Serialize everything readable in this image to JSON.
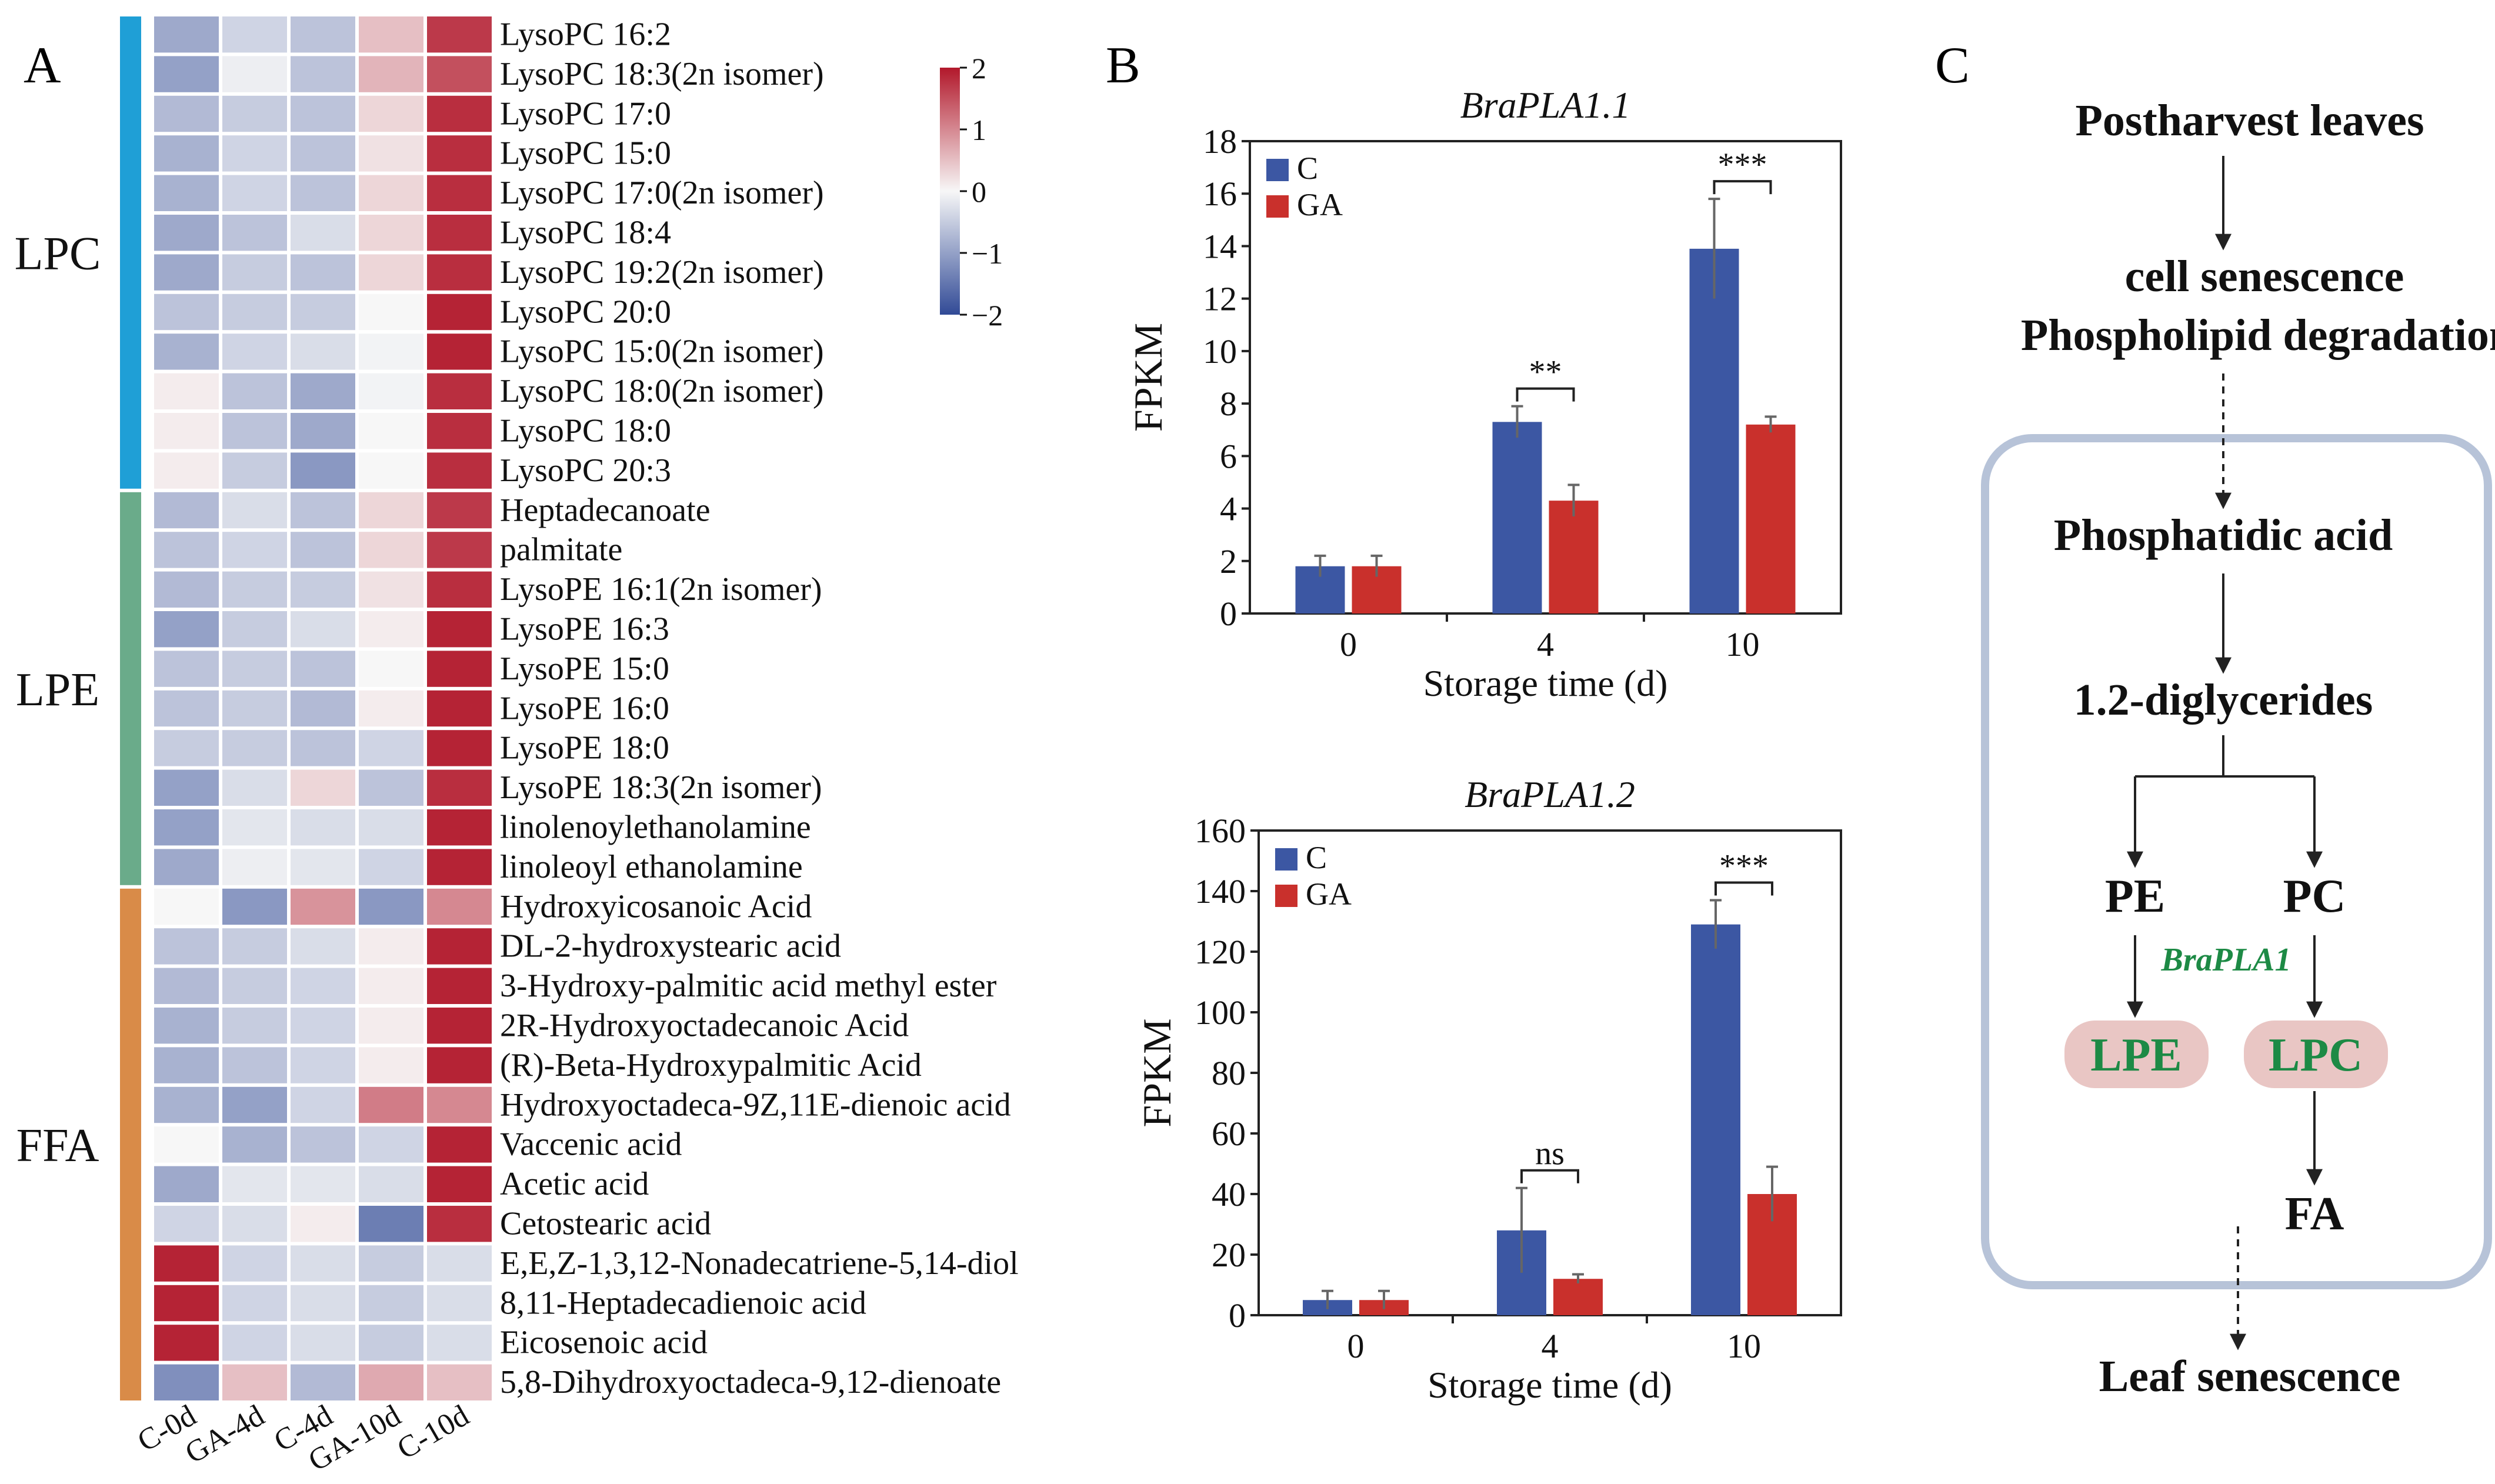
{
  "panel_labels": {
    "a": "A",
    "b": "B",
    "c": "C"
  },
  "colors": {
    "blue": "#3c57a3",
    "red": "#c9302c",
    "lpc_bar": "#1f9fd6",
    "lpe_bar": "#6aab8a",
    "ffa_bar": "#d98b48",
    "pathway_box": "#b7c3d8",
    "pill": "#e9c6c4",
    "green_text": "#1d8a45"
  },
  "heatmap": {
    "groups": [
      {
        "label": "LPC",
        "count": 12
      },
      {
        "label": "LPE",
        "count": 10
      },
      {
        "label": "FFA",
        "count": 13
      }
    ],
    "columns": [
      "C-0d",
      "GA-4d",
      "C-4d",
      "GA-10d",
      "C-10d"
    ],
    "rows": [
      "LysoPC  16:2",
      "LysoPC  18:3(2n  isomer)",
      "LysoPC  17:0",
      "LysoPC  15:0",
      "LysoPC  17:0(2n  isomer)",
      "LysoPC  18:4",
      "LysoPC  19:2(2n  isomer)",
      "LysoPC  20:0",
      "LysoPC  15:0(2n  isomer)",
      "LysoPC  18:0(2n  isomer)",
      "LysoPC  18:0",
      "LysoPC  20:3",
      "Heptadecanoate",
      "palmitate",
      "LysoPE  16:1(2n  isomer)",
      "LysoPE  16:3",
      "LysoPE  15:0",
      "LysoPE  16:0",
      "LysoPE  18:0",
      "LysoPE  18:3(2n  isomer)",
      "linolenoylethanolamine",
      "linoleoyl  ethanolamine",
      "Hydroxyicosanoic  Acid",
      "DL-2-hydroxystearic  acid",
      "3-Hydroxy-palmitic  acid  methyl  ester",
      "2R-Hydroxyoctadecanoic  Acid",
      "(R)-Beta-Hydroxypalmitic  Acid",
      "Hydroxyoctadeca-9Z,11E-dienoic  acid",
      "Vaccenic  acid",
      "Acetic  acid",
      "Cetostearic  acid",
      "E,E,Z-1,3,12-Nonadecatriene-5,14-diol",
      "8,11-Heptadecadienoic  acid",
      "Eicosenoic  acid",
      "5,8-Dihydroxyoctadeca-9,12-dienoate"
    ],
    "values": [
      [
        -0.9,
        -0.4,
        -0.6,
        0.5,
        1.7
      ],
      [
        -1.0,
        -0.1,
        -0.6,
        0.6,
        1.5
      ],
      [
        -0.7,
        -0.5,
        -0.6,
        0.3,
        1.8
      ],
      [
        -0.8,
        -0.4,
        -0.6,
        0.2,
        1.8
      ],
      [
        -0.8,
        -0.4,
        -0.6,
        0.3,
        1.8
      ],
      [
        -0.9,
        -0.6,
        -0.3,
        0.3,
        1.8
      ],
      [
        -0.9,
        -0.5,
        -0.6,
        0.3,
        1.8
      ],
      [
        -0.6,
        -0.5,
        -0.5,
        0.0,
        1.9
      ],
      [
        -0.8,
        -0.4,
        -0.3,
        -0.05,
        1.9
      ],
      [
        0.1,
        -0.6,
        -0.9,
        -0.05,
        1.8
      ],
      [
        0.1,
        -0.6,
        -0.9,
        0.0,
        1.8
      ],
      [
        0.1,
        -0.5,
        -1.1,
        0.0,
        1.8
      ],
      [
        -0.7,
        -0.3,
        -0.6,
        0.3,
        1.7
      ],
      [
        -0.6,
        -0.4,
        -0.6,
        0.3,
        1.7
      ],
      [
        -0.7,
        -0.5,
        -0.5,
        0.2,
        1.8
      ],
      [
        -1.0,
        -0.5,
        -0.3,
        0.1,
        1.9
      ],
      [
        -0.6,
        -0.5,
        -0.6,
        0.0,
        1.9
      ],
      [
        -0.6,
        -0.5,
        -0.7,
        0.1,
        1.9
      ],
      [
        -0.5,
        -0.5,
        -0.6,
        -0.4,
        1.9
      ],
      [
        -1.0,
        -0.3,
        0.3,
        -0.6,
        1.8
      ],
      [
        -1.0,
        -0.2,
        -0.3,
        -0.3,
        1.9
      ],
      [
        -0.9,
        -0.1,
        -0.2,
        -0.4,
        1.9
      ],
      [
        0.0,
        -1.1,
        0.9,
        -1.1,
        1.0
      ],
      [
        -0.6,
        -0.5,
        -0.3,
        0.1,
        1.9
      ],
      [
        -0.7,
        -0.5,
        -0.4,
        0.1,
        1.9
      ],
      [
        -0.8,
        -0.5,
        -0.4,
        0.1,
        1.9
      ],
      [
        -0.8,
        -0.6,
        -0.4,
        0.1,
        1.9
      ],
      [
        -0.8,
        -1.0,
        -0.4,
        1.1,
        1.0
      ],
      [
        0.0,
        -0.8,
        -0.6,
        -0.4,
        1.9
      ],
      [
        -0.9,
        -0.2,
        -0.2,
        -0.3,
        1.9
      ],
      [
        -0.4,
        -0.3,
        0.1,
        -1.4,
        1.8
      ],
      [
        1.9,
        -0.4,
        -0.3,
        -0.5,
        -0.3
      ],
      [
        1.9,
        -0.4,
        -0.3,
        -0.5,
        -0.3
      ],
      [
        1.9,
        -0.4,
        -0.3,
        -0.5,
        -0.3
      ],
      [
        -1.2,
        0.5,
        -0.7,
        0.7,
        0.5
      ]
    ],
    "legend_ticks": [
      "2",
      "1",
      "0",
      "−1",
      "−2"
    ],
    "legend_range": [
      -2,
      2
    ]
  },
  "chart_data": [
    {
      "type": "bar",
      "title": "BraPLA1.1",
      "categories": [
        "0",
        "4",
        "10"
      ],
      "series": [
        {
          "name": "C",
          "values": [
            1.8,
            7.3,
            13.9
          ],
          "errors": [
            0.4,
            0.6,
            1.9
          ]
        },
        {
          "name": "GA",
          "values": [
            1.8,
            4.3,
            7.2
          ],
          "errors": [
            0.4,
            0.6,
            0.3
          ]
        }
      ],
      "xlabel": "Storage time (d)",
      "ylabel": "FPKM",
      "ylim": [
        0,
        18
      ],
      "yticks": [
        0,
        2,
        4,
        6,
        8,
        10,
        12,
        14,
        16,
        18
      ],
      "significance": [
        "",
        "**",
        "***"
      ],
      "legend": "top-left"
    },
    {
      "type": "bar",
      "title": "BraPLA1.2",
      "categories": [
        "0",
        "4",
        "10"
      ],
      "series": [
        {
          "name": "C",
          "values": [
            5,
            28,
            129
          ],
          "errors": [
            3,
            14,
            8
          ]
        },
        {
          "name": "GA",
          "values": [
            5,
            12,
            40
          ],
          "errors": [
            3,
            1.5,
            9
          ]
        }
      ],
      "xlabel": "Storage time (d)",
      "ylabel": "FPKM",
      "ylim": [
        0,
        160
      ],
      "yticks": [
        0,
        20,
        40,
        60,
        80,
        100,
        120,
        140,
        160
      ],
      "significance": [
        "",
        "ns",
        "***"
      ],
      "legend": "top-left"
    }
  ],
  "pathway": {
    "postharvest": "Postharvest leaves",
    "senescence_line1": "cell senescence",
    "senescence_line2": "Phospholipid degradation",
    "pa": "Phosphatidic acid",
    "dag": "1.2-diglycerides",
    "pe": "PE",
    "pc": "PC",
    "enzyme": "BraPLA1",
    "lpe": "LPE",
    "lpc": "LPC",
    "fa": "FA",
    "leaf_senescence": "Leaf senescence"
  }
}
